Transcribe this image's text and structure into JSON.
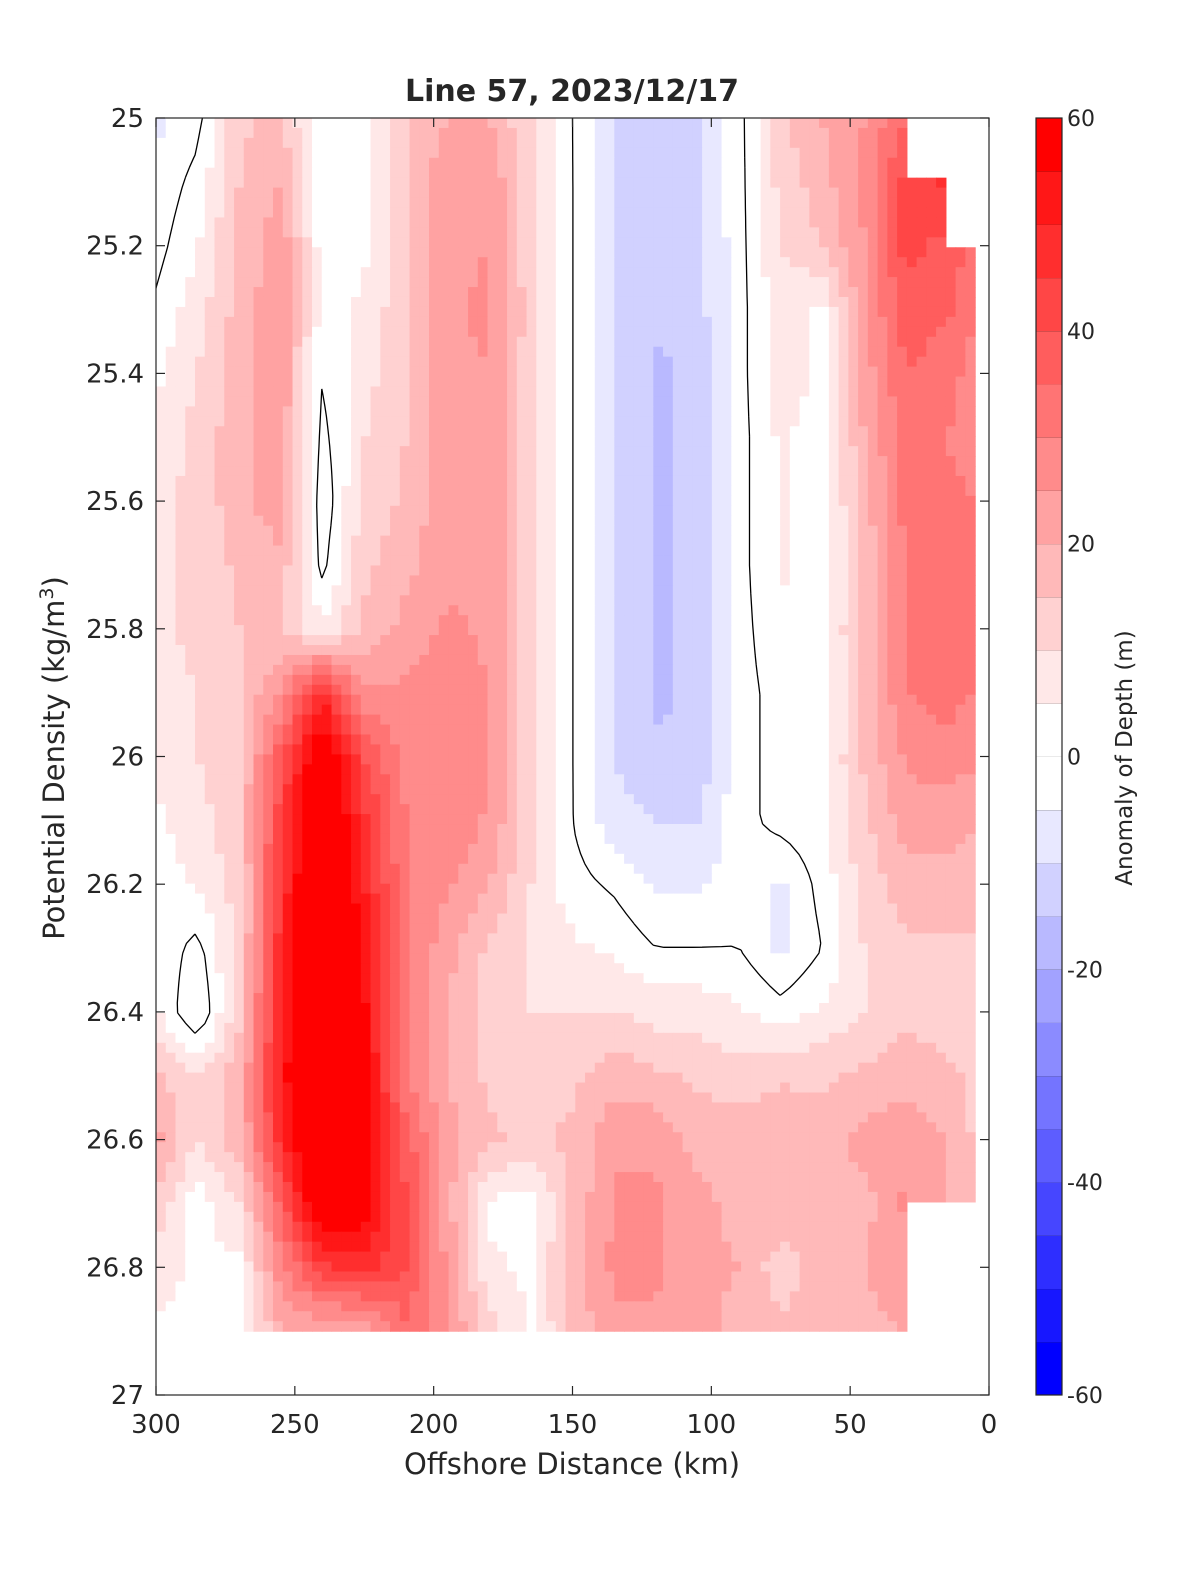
{
  "chart_data": {
    "type": "heatmap",
    "title": "Line 57, 2023/12/17",
    "xlabel": "Offshore Distance (km)",
    "ylabel_main": "Potential Density (kg/m",
    "ylabel_sup": "3",
    "ylabel_close": ")",
    "colorbar_label": "Anomaly of Depth (m)",
    "xlim": [
      300,
      0
    ],
    "ylim": [
      25,
      27
    ],
    "x_reversed": true,
    "y_reversed": true,
    "x_ticks": [
      300,
      250,
      200,
      150,
      100,
      50,
      0
    ],
    "x_tick_labels": [
      "300",
      "250",
      "200",
      "150",
      "100",
      "50",
      "0"
    ],
    "y_ticks": [
      25,
      25.2,
      25.4,
      25.6,
      25.8,
      26,
      26.2,
      26.4,
      26.6,
      26.8,
      27
    ],
    "y_tick_labels": [
      "25",
      "25.2",
      "25.4",
      "25.6",
      "25.8",
      "26",
      "26.2",
      "26.4",
      "26.6",
      "26.8",
      "27"
    ],
    "clim": [
      -60,
      60
    ],
    "contour_interval": 5,
    "colorbar_ticks": [
      60,
      40,
      20,
      0,
      -20,
      -40,
      -60
    ],
    "colorbar_tick_labels": [
      "60",
      "40",
      "20",
      "0",
      "-20",
      "-40",
      "-60"
    ],
    "zero_contour_color": "#000000",
    "colormap": {
      "negative": "#0000ff",
      "zero": "#ffffff",
      "positive": "#ff0000"
    },
    "grid": false,
    "x": [
      300,
      285,
      270,
      255,
      240,
      225,
      210,
      195,
      180,
      165,
      150,
      135,
      120,
      105,
      90,
      75,
      60,
      45,
      30,
      15,
      5
    ],
    "y": [
      25,
      25.1,
      25.2,
      25.3,
      25.4,
      25.5,
      25.6,
      25.7,
      25.8,
      25.9,
      26,
      26.1,
      26.2,
      26.3,
      26.4,
      26.5,
      26.6,
      26.7,
      26.8,
      26.9
    ],
    "z": [
      [
        -6,
        -2,
        14,
        16,
        0,
        2,
        14,
        20,
        20,
        10,
        0,
        -10,
        -14,
        -11,
        -2,
        14,
        20,
        25,
        35,
        null,
        null
      ],
      [
        -4,
        2,
        15,
        20,
        0,
        3,
        15,
        24,
        24,
        12,
        0,
        -10,
        -14,
        -11,
        -2,
        12,
        18,
        26,
        42,
        46,
        null
      ],
      [
        -2,
        5,
        16,
        24,
        2,
        4,
        14,
        24,
        25,
        12,
        0,
        -10,
        -14,
        -12,
        -2,
        10,
        15,
        25,
        42,
        38,
        34
      ],
      [
        1,
        8,
        17,
        24,
        3,
        6,
        14,
        24,
        26,
        12,
        0,
        -10,
        -14,
        -12,
        -2,
        8,
        4,
        24,
        38,
        36,
        30
      ],
      [
        4,
        10,
        18,
        24,
        0,
        8,
        14,
        24,
        25,
        12,
        0,
        -10,
        -16,
        -14,
        -2,
        8,
        4,
        22,
        35,
        32,
        28
      ],
      [
        6,
        12,
        18,
        24,
        -2,
        10,
        15,
        24,
        24,
        12,
        0,
        -10,
        -16,
        -14,
        -2,
        6,
        2,
        20,
        32,
        30,
        26
      ],
      [
        8,
        12,
        18,
        24,
        -4,
        12,
        16,
        24,
        24,
        12,
        0,
        -10,
        -16,
        -14,
        -2,
        6,
        2,
        18,
        32,
        32,
        30
      ],
      [
        8,
        12,
        16,
        18,
        -2,
        14,
        18,
        24,
        24,
        12,
        0,
        -10,
        -16,
        -14,
        -2,
        6,
        2,
        16,
        30,
        34,
        32
      ],
      [
        8,
        12,
        15,
        15,
        6,
        16,
        22,
        26,
        24,
        12,
        0,
        -10,
        -16,
        -14,
        -2,
        4,
        4,
        16,
        30,
        34,
        34
      ],
      [
        7,
        10,
        14,
        26,
        48,
        26,
        26,
        28,
        25,
        12,
        0,
        -10,
        -16,
        -14,
        -2,
        2,
        2,
        16,
        30,
        32,
        30
      ],
      [
        6,
        10,
        14,
        38,
        64,
        40,
        28,
        30,
        25,
        12,
        0,
        -10,
        -14,
        -14,
        -2,
        2,
        4,
        16,
        26,
        28,
        26
      ],
      [
        4,
        8,
        14,
        44,
        68,
        46,
        30,
        30,
        24,
        12,
        0,
        -8,
        -10,
        -10,
        -2,
        2,
        4,
        14,
        22,
        22,
        20
      ],
      [
        2,
        6,
        12,
        46,
        70,
        50,
        30,
        26,
        20,
        10,
        2,
        -1,
        -6,
        -6,
        -2,
        -6,
        2,
        12,
        18,
        18,
        18
      ],
      [
        4,
        -2,
        12,
        48,
        72,
        54,
        30,
        22,
        14,
        10,
        6,
        4,
        0,
        0,
        0,
        -6,
        0,
        10,
        14,
        14,
        14
      ],
      [
        6,
        -6,
        14,
        50,
        72,
        56,
        30,
        20,
        12,
        10,
        10,
        10,
        8,
        8,
        6,
        2,
        6,
        10,
        14,
        12,
        12
      ],
      [
        16,
        10,
        18,
        52,
        72,
        58,
        30,
        20,
        14,
        12,
        14,
        18,
        16,
        14,
        12,
        14,
        14,
        16,
        18,
        16,
        14
      ],
      [
        22,
        10,
        18,
        48,
        72,
        60,
        38,
        22,
        16,
        14,
        16,
        24,
        24,
        18,
        18,
        20,
        18,
        22,
        24,
        20,
        14
      ],
      [
        14,
        2,
        10,
        36,
        66,
        58,
        40,
        22,
        4,
        2,
        16,
        26,
        26,
        22,
        18,
        20,
        16,
        18,
        26,
        20,
        14
      ],
      [
        8,
        4,
        4,
        28,
        44,
        48,
        40,
        24,
        6,
        4,
        18,
        26,
        26,
        22,
        20,
        12,
        18,
        20,
        24,
        null,
        null
      ],
      [
        4,
        2,
        2,
        20,
        20,
        20,
        34,
        26,
        12,
        4,
        16,
        24,
        24,
        22,
        18,
        16,
        18,
        18,
        20,
        null,
        null
      ]
    ]
  }
}
